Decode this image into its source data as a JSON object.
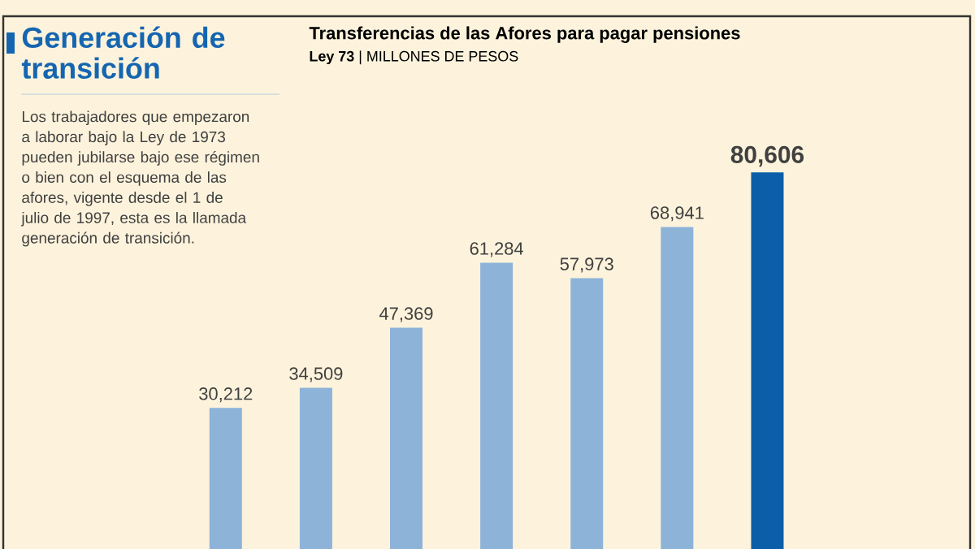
{
  "chart_data": [
    {
      "type": "other",
      "title": "Generación de transición",
      "annotations": [
        "Los trabajadores que empezaron a laborar bajo la Ley de 1973 pueden jubilarse bajo ese régimen o bien con el esquema de las afores, vigente desde el 1 de julio de 1997, esta es la llamada generación de transición."
      ]
    },
    {
      "type": "bar",
      "title": "Transferencias de las Afores para pagar pensiones",
      "subtitle": "**Ley 73** | MILLONES DE PESOS",
      "categories": [
        null,
        null,
        null,
        null,
        null,
        null,
        null
      ],
      "values": [
        30212,
        34509,
        47369,
        61284,
        57973,
        68941,
        80606
      ],
      "colors": [
        "#8db3d9",
        "#8db3d9",
        "#8db3d9",
        "#8db3d9",
        "#8db3d9",
        "#8db3d9",
        "#0d5ea8"
      ],
      "value_labels": [
        "30,212",
        "34,509",
        "47,369",
        "61,284",
        "57,973",
        "68,941",
        "**80,606**"
      ]
    }
  ]
}
